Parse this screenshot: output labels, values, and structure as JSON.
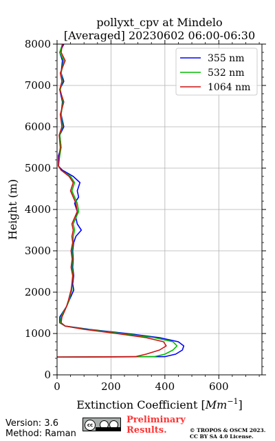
{
  "chart_data": {
    "type": "line",
    "title": "pollyxt_cpv at Mindelo",
    "subtitle": "[Averaged] 20230602 06:00-06:30",
    "xlabel": "Extinction Coefficient",
    "xlabel_unit": "Mm",
    "xlabel_exp": "−1",
    "ylabel": "Height (m)",
    "xlim": [
      0,
      760
    ],
    "ylim": [
      0,
      8000
    ],
    "xticks": [
      0,
      200,
      400,
      600
    ],
    "yticks": [
      0,
      1000,
      2000,
      3000,
      4000,
      5000,
      6000,
      7000,
      8000
    ],
    "grid": true,
    "legend_position": "top-right",
    "series": [
      {
        "name": "355 nm",
        "color": "#0000ff",
        "points": [
          [
            0,
            430
          ],
          [
            400,
            440
          ],
          [
            440,
            500
          ],
          [
            465,
            600
          ],
          [
            470,
            700
          ],
          [
            450,
            800
          ],
          [
            380,
            900
          ],
          [
            260,
            1000
          ],
          [
            120,
            1100
          ],
          [
            30,
            1180
          ],
          [
            10,
            1260
          ],
          [
            10,
            1400
          ],
          [
            20,
            1500
          ],
          [
            35,
            1650
          ],
          [
            45,
            1800
          ],
          [
            55,
            1950
          ],
          [
            62,
            2050
          ],
          [
            58,
            2200
          ],
          [
            62,
            2400
          ],
          [
            58,
            2600
          ],
          [
            60,
            2800
          ],
          [
            58,
            3000
          ],
          [
            62,
            3200
          ],
          [
            70,
            3350
          ],
          [
            90,
            3500
          ],
          [
            75,
            3650
          ],
          [
            70,
            3800
          ],
          [
            75,
            3950
          ],
          [
            65,
            4150
          ],
          [
            80,
            4300
          ],
          [
            75,
            4450
          ],
          [
            85,
            4650
          ],
          [
            60,
            4800
          ],
          [
            20,
            4950
          ],
          [
            5,
            5050
          ],
          [
            5,
            5300
          ],
          [
            15,
            5500
          ],
          [
            10,
            5800
          ],
          [
            25,
            6000
          ],
          [
            15,
            6300
          ],
          [
            20,
            6600
          ],
          [
            10,
            6900
          ],
          [
            25,
            7100
          ],
          [
            15,
            7300
          ],
          [
            20,
            7600
          ],
          [
            10,
            7800
          ],
          [
            25,
            8000
          ]
        ]
      },
      {
        "name": "532 nm",
        "color": "#00bb00",
        "points": [
          [
            0,
            430
          ],
          [
            360,
            440
          ],
          [
            400,
            500
          ],
          [
            430,
            600
          ],
          [
            445,
            700
          ],
          [
            430,
            800
          ],
          [
            360,
            900
          ],
          [
            240,
            1000
          ],
          [
            110,
            1100
          ],
          [
            30,
            1180
          ],
          [
            12,
            1260
          ],
          [
            15,
            1400
          ],
          [
            22,
            1500
          ],
          [
            35,
            1650
          ],
          [
            45,
            1800
          ],
          [
            50,
            1950
          ],
          [
            55,
            2050
          ],
          [
            55,
            2200
          ],
          [
            60,
            2400
          ],
          [
            55,
            2600
          ],
          [
            58,
            2800
          ],
          [
            55,
            3000
          ],
          [
            60,
            3200
          ],
          [
            60,
            3350
          ],
          [
            65,
            3500
          ],
          [
            60,
            3650
          ],
          [
            70,
            3800
          ],
          [
            80,
            3950
          ],
          [
            75,
            4150
          ],
          [
            65,
            4300
          ],
          [
            55,
            4450
          ],
          [
            65,
            4650
          ],
          [
            50,
            4800
          ],
          [
            15,
            4950
          ],
          [
            5,
            5050
          ],
          [
            10,
            5300
          ],
          [
            15,
            5500
          ],
          [
            10,
            5800
          ],
          [
            20,
            6000
          ],
          [
            15,
            6300
          ],
          [
            22,
            6600
          ],
          [
            12,
            6900
          ],
          [
            20,
            7100
          ],
          [
            15,
            7300
          ],
          [
            25,
            7600
          ],
          [
            10,
            7800
          ],
          [
            20,
            8000
          ]
        ]
      },
      {
        "name": "1064 nm",
        "color": "#cc1111",
        "points": [
          [
            0,
            430
          ],
          [
            290,
            440
          ],
          [
            330,
            500
          ],
          [
            380,
            600
          ],
          [
            405,
            700
          ],
          [
            395,
            800
          ],
          [
            330,
            900
          ],
          [
            220,
            1000
          ],
          [
            100,
            1100
          ],
          [
            30,
            1180
          ],
          [
            15,
            1260
          ],
          [
            18,
            1400
          ],
          [
            25,
            1500
          ],
          [
            35,
            1650
          ],
          [
            42,
            1800
          ],
          [
            48,
            1950
          ],
          [
            52,
            2050
          ],
          [
            55,
            2200
          ],
          [
            58,
            2400
          ],
          [
            52,
            2600
          ],
          [
            56,
            2800
          ],
          [
            52,
            3000
          ],
          [
            58,
            3200
          ],
          [
            55,
            3350
          ],
          [
            60,
            3500
          ],
          [
            55,
            3650
          ],
          [
            65,
            3800
          ],
          [
            75,
            3950
          ],
          [
            70,
            4150
          ],
          [
            60,
            4300
          ],
          [
            50,
            4450
          ],
          [
            60,
            4650
          ],
          [
            45,
            4800
          ],
          [
            15,
            4950
          ],
          [
            5,
            5050
          ],
          [
            8,
            5300
          ],
          [
            12,
            5500
          ],
          [
            8,
            5800
          ],
          [
            18,
            6000
          ],
          [
            12,
            6300
          ],
          [
            25,
            6600
          ],
          [
            10,
            6900
          ],
          [
            18,
            7100
          ],
          [
            12,
            7300
          ],
          [
            30,
            7600
          ],
          [
            15,
            7800
          ],
          [
            20,
            8000
          ]
        ]
      }
    ]
  },
  "footer": {
    "version": "Version: 3.6",
    "method": "Method: Raman",
    "preliminary": "Preliminary Results.",
    "copyright": "© TROPOS & OSCM 2023. CC BY SA 4.0 License."
  }
}
